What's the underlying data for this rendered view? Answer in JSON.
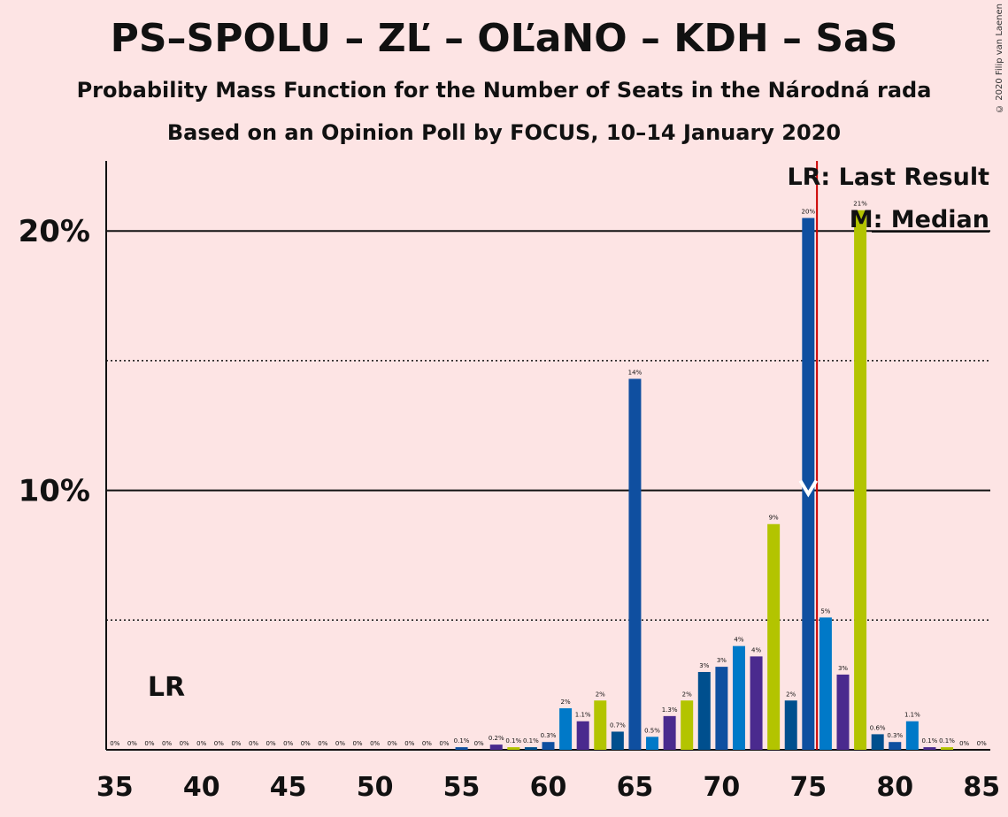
{
  "title": "PS–SPOLU – ZĽ – OĽaNO – KDH – SaS",
  "subtitle1": "Probability Mass Function for the Number of Seats in the Národná rada",
  "subtitle2": "Based on an Opinion Poll by FOCUS, 10–14 January 2020",
  "copyright": "© 2020 Filip van Laenen",
  "colors": {
    "background": "#fde4e4",
    "bar_palette": [
      "#0f4fa0",
      "#0079c8",
      "#4a2a8e",
      "#b3c400",
      "#004f8e"
    ],
    "last_result_line": "#cc0000"
  },
  "chart_data": {
    "type": "bar",
    "title": "PS–SPOLU – ZĽ – OĽaNO – KDH – SaS",
    "xlabel": "",
    "ylabel": "",
    "x_ticks": [
      35,
      40,
      45,
      50,
      55,
      60,
      65,
      70,
      75,
      80,
      85
    ],
    "y_ticks": [
      "10%",
      "20%"
    ],
    "ylim": [
      0,
      22.7
    ],
    "xlim": [
      34.5,
      85.5
    ],
    "grid": {
      "solid": [
        10,
        20
      ],
      "dotted": [
        5,
        15
      ]
    },
    "series": [
      {
        "x": [
          35,
          36,
          37,
          38,
          39,
          40,
          41,
          42,
          43,
          44,
          45,
          46,
          47,
          48,
          49,
          50,
          51,
          52,
          53,
          54,
          55,
          56,
          57,
          58,
          59,
          60,
          61,
          62,
          63,
          64,
          65,
          66,
          67,
          68,
          69,
          70,
          71,
          72,
          73,
          74,
          75,
          76,
          77,
          78,
          79,
          80,
          81,
          82,
          83,
          84,
          85
        ],
        "values": [
          0,
          0,
          0,
          0,
          0,
          0,
          0,
          0,
          0,
          0,
          0,
          0,
          0,
          0,
          0,
          0,
          0,
          0,
          0,
          0,
          0.1,
          0,
          0.2,
          0.1,
          0.1,
          0.3,
          1.6,
          1.1,
          1.9,
          0.7,
          14.3,
          0.5,
          1.3,
          1.9,
          3.0,
          3.2,
          4.0,
          3.6,
          8.7,
          1.9,
          20.5,
          5.1,
          2.9,
          20.8,
          0.6,
          0.3,
          1.1,
          0.1,
          0.1,
          0,
          0
        ],
        "labels": [
          "0%",
          "0%",
          "0%",
          "0%",
          "0%",
          "0%",
          "0%",
          "0%",
          "0%",
          "0%",
          "0%",
          "0%",
          "0%",
          "0%",
          "0%",
          "0%",
          "0%",
          "0%",
          "0%",
          "0%",
          "0.1%",
          "0%",
          "0.2%",
          "0.1%",
          "0.1%",
          "0.3%",
          "2%",
          "1.1%",
          "2%",
          "0.7%",
          "14%",
          "0.5%",
          "1.3%",
          "2%",
          "3%",
          "3%",
          "4%",
          "4%",
          "9%",
          "2%",
          "20%",
          "5%",
          "3%",
          "21%",
          "0.6%",
          "0.3%",
          "1.1%",
          "0.1%",
          "0.1%",
          "0%",
          "0%"
        ]
      }
    ],
    "last_result": {
      "seats": 75.5,
      "marker_text": "LR",
      "legend_text": "LR: Last Result"
    },
    "median": {
      "seats": 75,
      "marker_text": "M",
      "legend_text": "M: Median"
    },
    "lr_axis_label": "LR"
  }
}
